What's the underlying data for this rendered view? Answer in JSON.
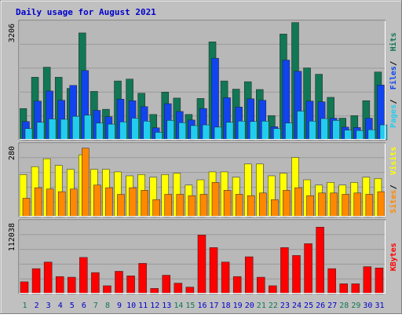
{
  "chart_data": {
    "type": "bar",
    "title": "Daily usage for August 2021",
    "categories": [
      "1",
      "2",
      "3",
      "4",
      "5",
      "6",
      "7",
      "8",
      "9",
      "10",
      "11",
      "12",
      "13",
      "14",
      "15",
      "16",
      "17",
      "18",
      "19",
      "20",
      "21",
      "22",
      "23",
      "24",
      "25",
      "26",
      "27",
      "28",
      "29",
      "30",
      "31"
    ],
    "weekend_days": [
      "1",
      "7",
      "8",
      "14",
      "15",
      "21",
      "22",
      "28",
      "29"
    ],
    "panels": [
      {
        "id": "hits",
        "ymax_label": "3206",
        "ylim": [
          0,
          3206
        ],
        "axis_label_parts": [
          "Pages",
          "Files",
          "Hits"
        ],
        "series": [
          {
            "name": "Hits",
            "color": "#117755",
            "values": [
              840,
              1680,
              1950,
              1680,
              1380,
              2870,
              1300,
              820,
              1580,
              1630,
              1250,
              680,
              1280,
              1120,
              680,
              1110,
              2630,
              1580,
              1360,
              1560,
              1350,
              650,
              2840,
              3150,
              1930,
              1760,
              1140,
              580,
              650,
              1050,
              1820
            ]
          },
          {
            "name": "Files",
            "color": "#1144ee",
            "values": [
              490,
              1040,
              1310,
              1060,
              1460,
              1860,
              790,
              620,
              1090,
              1050,
              890,
              320,
              970,
              760,
              530,
              840,
              2190,
              1130,
              880,
              1100,
              1060,
              350,
              2140,
              1840,
              1040,
              1020,
              580,
              340,
              330,
              580,
              1470
            ]
          },
          {
            "name": "Pages",
            "color": "#22ccee",
            "values": [
              300,
              470,
              560,
              550,
              630,
              660,
              450,
              420,
              480,
              580,
              500,
              200,
              520,
              460,
              380,
              400,
              340,
              470,
              500,
              490,
              500,
              300,
              450,
              770,
              500,
              570,
              520,
              260,
              250,
              270,
              400
            ]
          }
        ]
      },
      {
        "id": "visits",
        "ymax_label": "280",
        "ylim": [
          0,
          280
        ],
        "axis_label_parts": [
          "Sites",
          "Visits"
        ],
        "series": [
          {
            "name": "Visits",
            "color": "#ffff00",
            "values": [
              160,
              190,
              220,
              195,
              180,
              235,
              180,
              180,
              170,
              155,
              160,
              150,
              160,
              165,
              120,
              140,
              170,
              170,
              150,
              200,
              200,
              155,
              165,
              225,
              140,
              120,
              130,
              120,
              130,
              150,
              145
            ]
          },
          {
            "name": "Sites",
            "color": "#ff8800",
            "values": [
              70,
              110,
              105,
              95,
              105,
              260,
              120,
              110,
              85,
              110,
              100,
              65,
              85,
              85,
              80,
              85,
              130,
              100,
              85,
              80,
              90,
              65,
              100,
              110,
              80,
              90,
              90,
              85,
              90,
              85,
              95
            ]
          }
        ]
      },
      {
        "id": "kbytes",
        "ymax_label": "112038",
        "ylim": [
          0,
          112038
        ],
        "axis_label_parts": [
          "KBytes"
        ],
        "series": [
          {
            "name": "KBytes",
            "color": "#ff0000",
            "values": [
              18000,
              38000,
              48000,
              26000,
              25000,
              55000,
              32000,
              12000,
              34000,
              27000,
              46000,
              8000,
              28000,
              16000,
              10000,
              89000,
              70000,
              48000,
              26000,
              56000,
              25000,
              12000,
              70000,
              58000,
              76000,
              101000,
              38000,
              15000,
              15000,
              41000,
              39000
            ]
          }
        ]
      }
    ]
  }
}
